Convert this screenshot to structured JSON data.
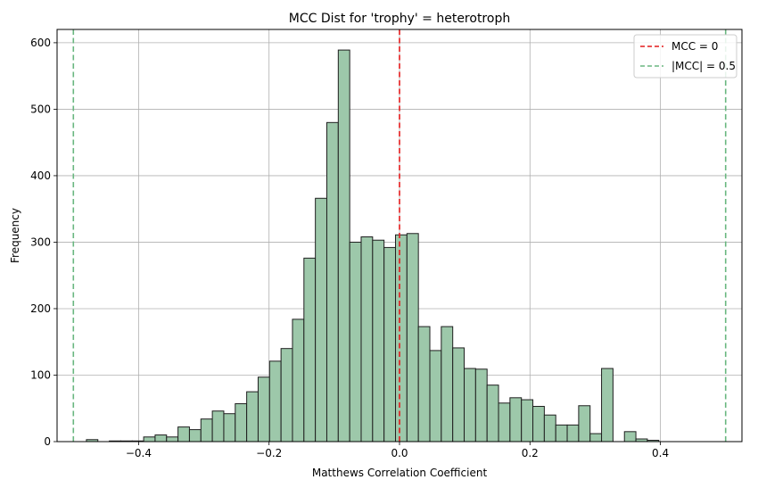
{
  "chart_data": {
    "type": "bar",
    "title": "MCC Dist for 'trophy' = heterotroph",
    "xlabel": "Matthews Correlation Coefficient",
    "ylabel": "Frequency",
    "xlim": [
      -0.525,
      0.525
    ],
    "ylim": [
      0,
      620
    ],
    "xticks": [
      -0.4,
      -0.2,
      0.0,
      0.2,
      0.4
    ],
    "xtick_labels": [
      "−0.4",
      "−0.2",
      "0.0",
      "0.2",
      "0.4"
    ],
    "yticks": [
      0,
      100,
      200,
      300,
      400,
      500,
      600
    ],
    "ytick_labels": [
      "0",
      "100",
      "200",
      "300",
      "400",
      "500",
      "600"
    ],
    "grid": true,
    "bar_color": "#9dc8aa",
    "bar_edge_color": "#1f1f1f",
    "bin_start": -0.48,
    "bin_width": 0.01755,
    "values": [
      3,
      0,
      1,
      1,
      1,
      7,
      10,
      7,
      22,
      18,
      34,
      46,
      42,
      57,
      75,
      97,
      121,
      140,
      184,
      276,
      366,
      480,
      589,
      300,
      308,
      303,
      292,
      311,
      313,
      173,
      137,
      173,
      141,
      110,
      109,
      85,
      58,
      66,
      63,
      53,
      40,
      25,
      25,
      54,
      12,
      110,
      0,
      15,
      4,
      2
    ],
    "vlines": [
      {
        "x": 0.0,
        "color": "#e41a1c",
        "style": "dashed",
        "label": "MCC = 0"
      },
      {
        "x": -0.5,
        "color": "#6ab780",
        "style": "dashed",
        "label": "|MCC| = 0.5"
      },
      {
        "x": 0.5,
        "color": "#6ab780",
        "style": "dashed",
        "label": ""
      }
    ],
    "legend": {
      "position": "top-right",
      "entries": [
        {
          "label": "MCC = 0",
          "color": "#e41a1c"
        },
        {
          "label": "|MCC| = 0.5",
          "color": "#6ab780"
        }
      ]
    }
  }
}
